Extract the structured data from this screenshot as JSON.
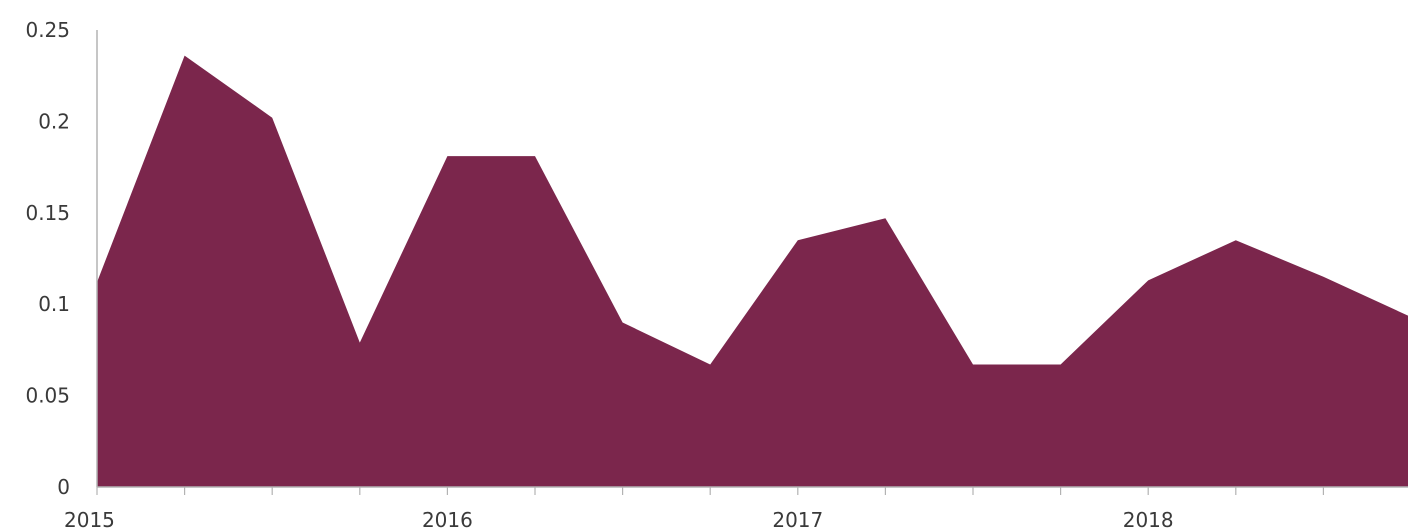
{
  "chart_data": {
    "type": "area",
    "title": "",
    "xlabel": "",
    "ylabel": "",
    "x": [
      "2015-01",
      "2015-04",
      "2015-07",
      "2015-10",
      "2016-01",
      "2016-04",
      "2016-07",
      "2016-10",
      "2017-01",
      "2017-04",
      "2017-07",
      "2017-10",
      "2018-01",
      "2018-04",
      "2018-07",
      "2018-10"
    ],
    "series": [
      {
        "values": [
          0.112,
          0.236,
          0.202,
          0.079,
          0.181,
          0.181,
          0.09,
          0.067,
          0.135,
          0.147,
          0.067,
          0.067,
          0.113,
          0.135,
          0.115,
          0.093
        ]
      }
    ],
    "ylim": [
      0,
      0.25
    ],
    "y_ticks": [
      "0",
      "0.05",
      "0.1",
      "0.15",
      "0.2",
      "0.25"
    ],
    "x_tick_labels": [
      "2015",
      "2016",
      "2017",
      "2018"
    ],
    "grid": false,
    "fill_color": "#7b264c",
    "axis_color": "#b3b3b3"
  }
}
